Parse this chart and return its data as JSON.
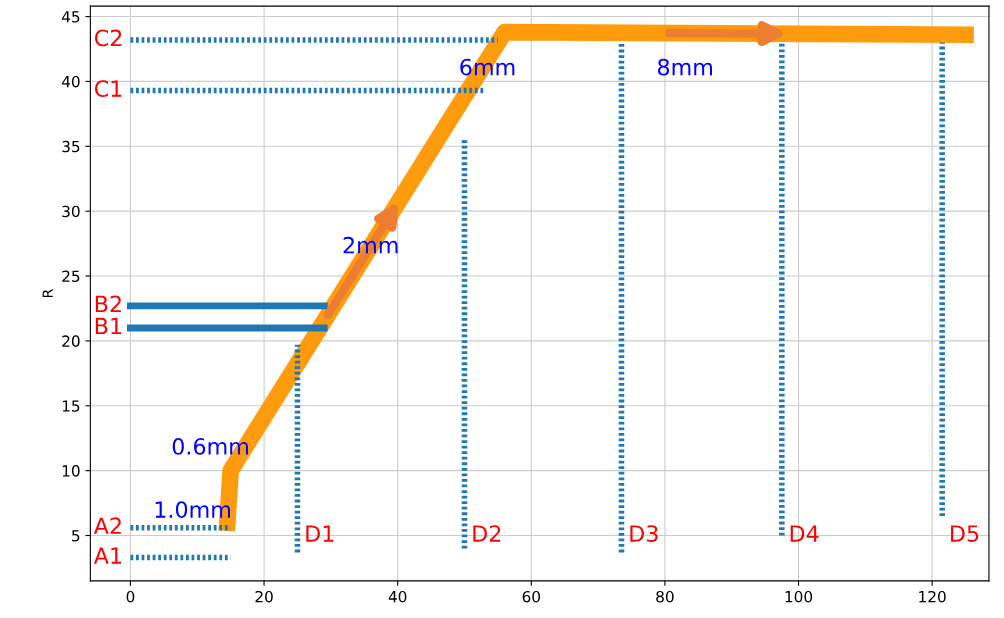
{
  "chart_data": {
    "type": "line",
    "ylabel": "R",
    "xlim": [
      -6,
      128.5
    ],
    "ylim": [
      1.5,
      45.8
    ],
    "xticks": [
      0,
      20,
      40,
      60,
      80,
      100,
      120
    ],
    "yticks": [
      5,
      10,
      15,
      20,
      25,
      30,
      35,
      40,
      45
    ],
    "grid": true,
    "legend": false,
    "marker": "none",
    "series": [
      {
        "name": "A1",
        "color": "#1f77b4",
        "line_style": "dotted",
        "x": [
          0,
          15
        ],
        "values": [
          3.3,
          3.3
        ]
      },
      {
        "name": "A2",
        "color": "#1f77b4",
        "line_style": "dotted",
        "x": [
          0,
          15
        ],
        "values": [
          5.6,
          5.6
        ]
      },
      {
        "name": "B1",
        "color": "#1f77b4",
        "line_style": "solid",
        "x": [
          0,
          29
        ],
        "values": [
          21,
          21
        ]
      },
      {
        "name": "B2",
        "color": "#1f77b4",
        "line_style": "solid",
        "x": [
          0,
          29
        ],
        "values": [
          22.7,
          22.7
        ]
      },
      {
        "name": "C1",
        "color": "#1f77b4",
        "line_style": "dotted",
        "x": [
          0,
          53
        ],
        "values": [
          39.3,
          39.3
        ]
      },
      {
        "name": "C2",
        "color": "#1f77b4",
        "line_style": "dotted",
        "x": [
          0,
          55
        ],
        "values": [
          43.2,
          43.2
        ]
      },
      {
        "name": "D1",
        "color": "#1f77b4",
        "line_style": "dotted",
        "x": [
          25,
          25
        ],
        "values": [
          3.7,
          19.7
        ]
      },
      {
        "name": "D2",
        "color": "#1f77b4",
        "line_style": "dotted",
        "x": [
          50,
          50
        ],
        "values": [
          4,
          35.5
        ]
      },
      {
        "name": "D3",
        "color": "#1f77b4",
        "line_style": "dotted",
        "x": [
          73.5,
          73.5
        ],
        "values": [
          3.7,
          43
        ]
      },
      {
        "name": "D4",
        "color": "#1f77b4",
        "line_style": "dotted",
        "x": [
          97.5,
          97.5
        ],
        "values": [
          5,
          43
        ]
      },
      {
        "name": "D5",
        "color": "#1f77b4",
        "line_style": "dotted",
        "x": [
          121.5,
          121.5
        ],
        "values": [
          6.5,
          43
        ]
      },
      {
        "color": "#ff9c0e",
        "line_style": "solid",
        "x": [
          14.5,
          15,
          56,
          125
        ],
        "values": [
          6,
          10,
          43.8,
          43.6
        ]
      }
    ],
    "annotations": [
      "1.0mm",
      "0.6mm",
      "2mm",
      "6mm",
      "8mm"
    ]
  }
}
